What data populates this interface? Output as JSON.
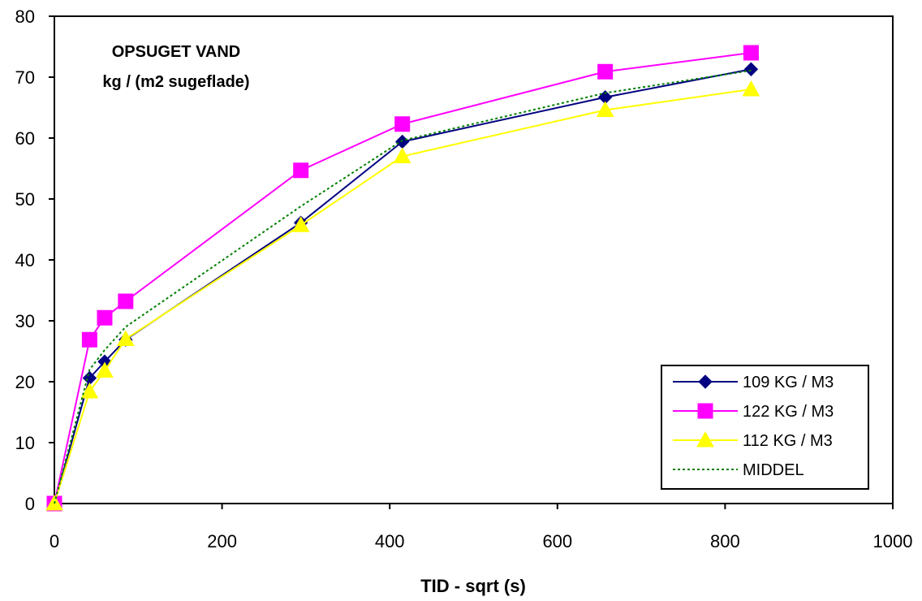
{
  "chart_data": {
    "type": "line",
    "title": "",
    "annotation": [
      "OPSUGET VAND",
      "kg / (m2 sugeflade)"
    ],
    "xlabel": "TID - sqrt (s)",
    "ylabel": "",
    "xlim": [
      0,
      1000
    ],
    "ylim": [
      0,
      80
    ],
    "x_ticks": [
      0,
      200,
      400,
      600,
      800,
      1000
    ],
    "y_ticks": [
      0,
      10,
      20,
      30,
      40,
      50,
      60,
      70,
      80
    ],
    "grid": false,
    "legend_position": "bottom-right",
    "series": [
      {
        "name": "109 KG / M3",
        "color": "#000080",
        "marker": "diamond",
        "line_style": "solid",
        "x": [
          0,
          42,
          60,
          85,
          294,
          415,
          657,
          831
        ],
        "y": [
          0,
          20.6,
          23.3,
          26.9,
          46.1,
          59.4,
          66.7,
          71.3
        ]
      },
      {
        "name": "122 KG / M3",
        "color": "#FF00FF",
        "marker": "square",
        "line_style": "solid",
        "x": [
          0,
          42,
          60,
          85,
          294,
          415,
          657,
          831
        ],
        "y": [
          0,
          26.9,
          30.5,
          33.2,
          54.7,
          62.3,
          70.9,
          74.0
        ]
      },
      {
        "name": "112 KG / M3",
        "color": "#FFFF00",
        "marker": "triangle",
        "line_style": "solid",
        "x": [
          0,
          42,
          60,
          85,
          294,
          415,
          657,
          831
        ],
        "y": [
          0,
          18.4,
          21.8,
          27.0,
          45.7,
          57.0,
          64.6,
          68.0
        ]
      },
      {
        "name": "MIDDEL",
        "color": "#008000",
        "marker": "none",
        "line_style": "dotted",
        "x": [
          0,
          42,
          60,
          85,
          294,
          415,
          657,
          831
        ],
        "y": [
          0,
          22.0,
          25.2,
          29.0,
          48.8,
          59.6,
          67.4,
          71.1
        ]
      }
    ]
  }
}
